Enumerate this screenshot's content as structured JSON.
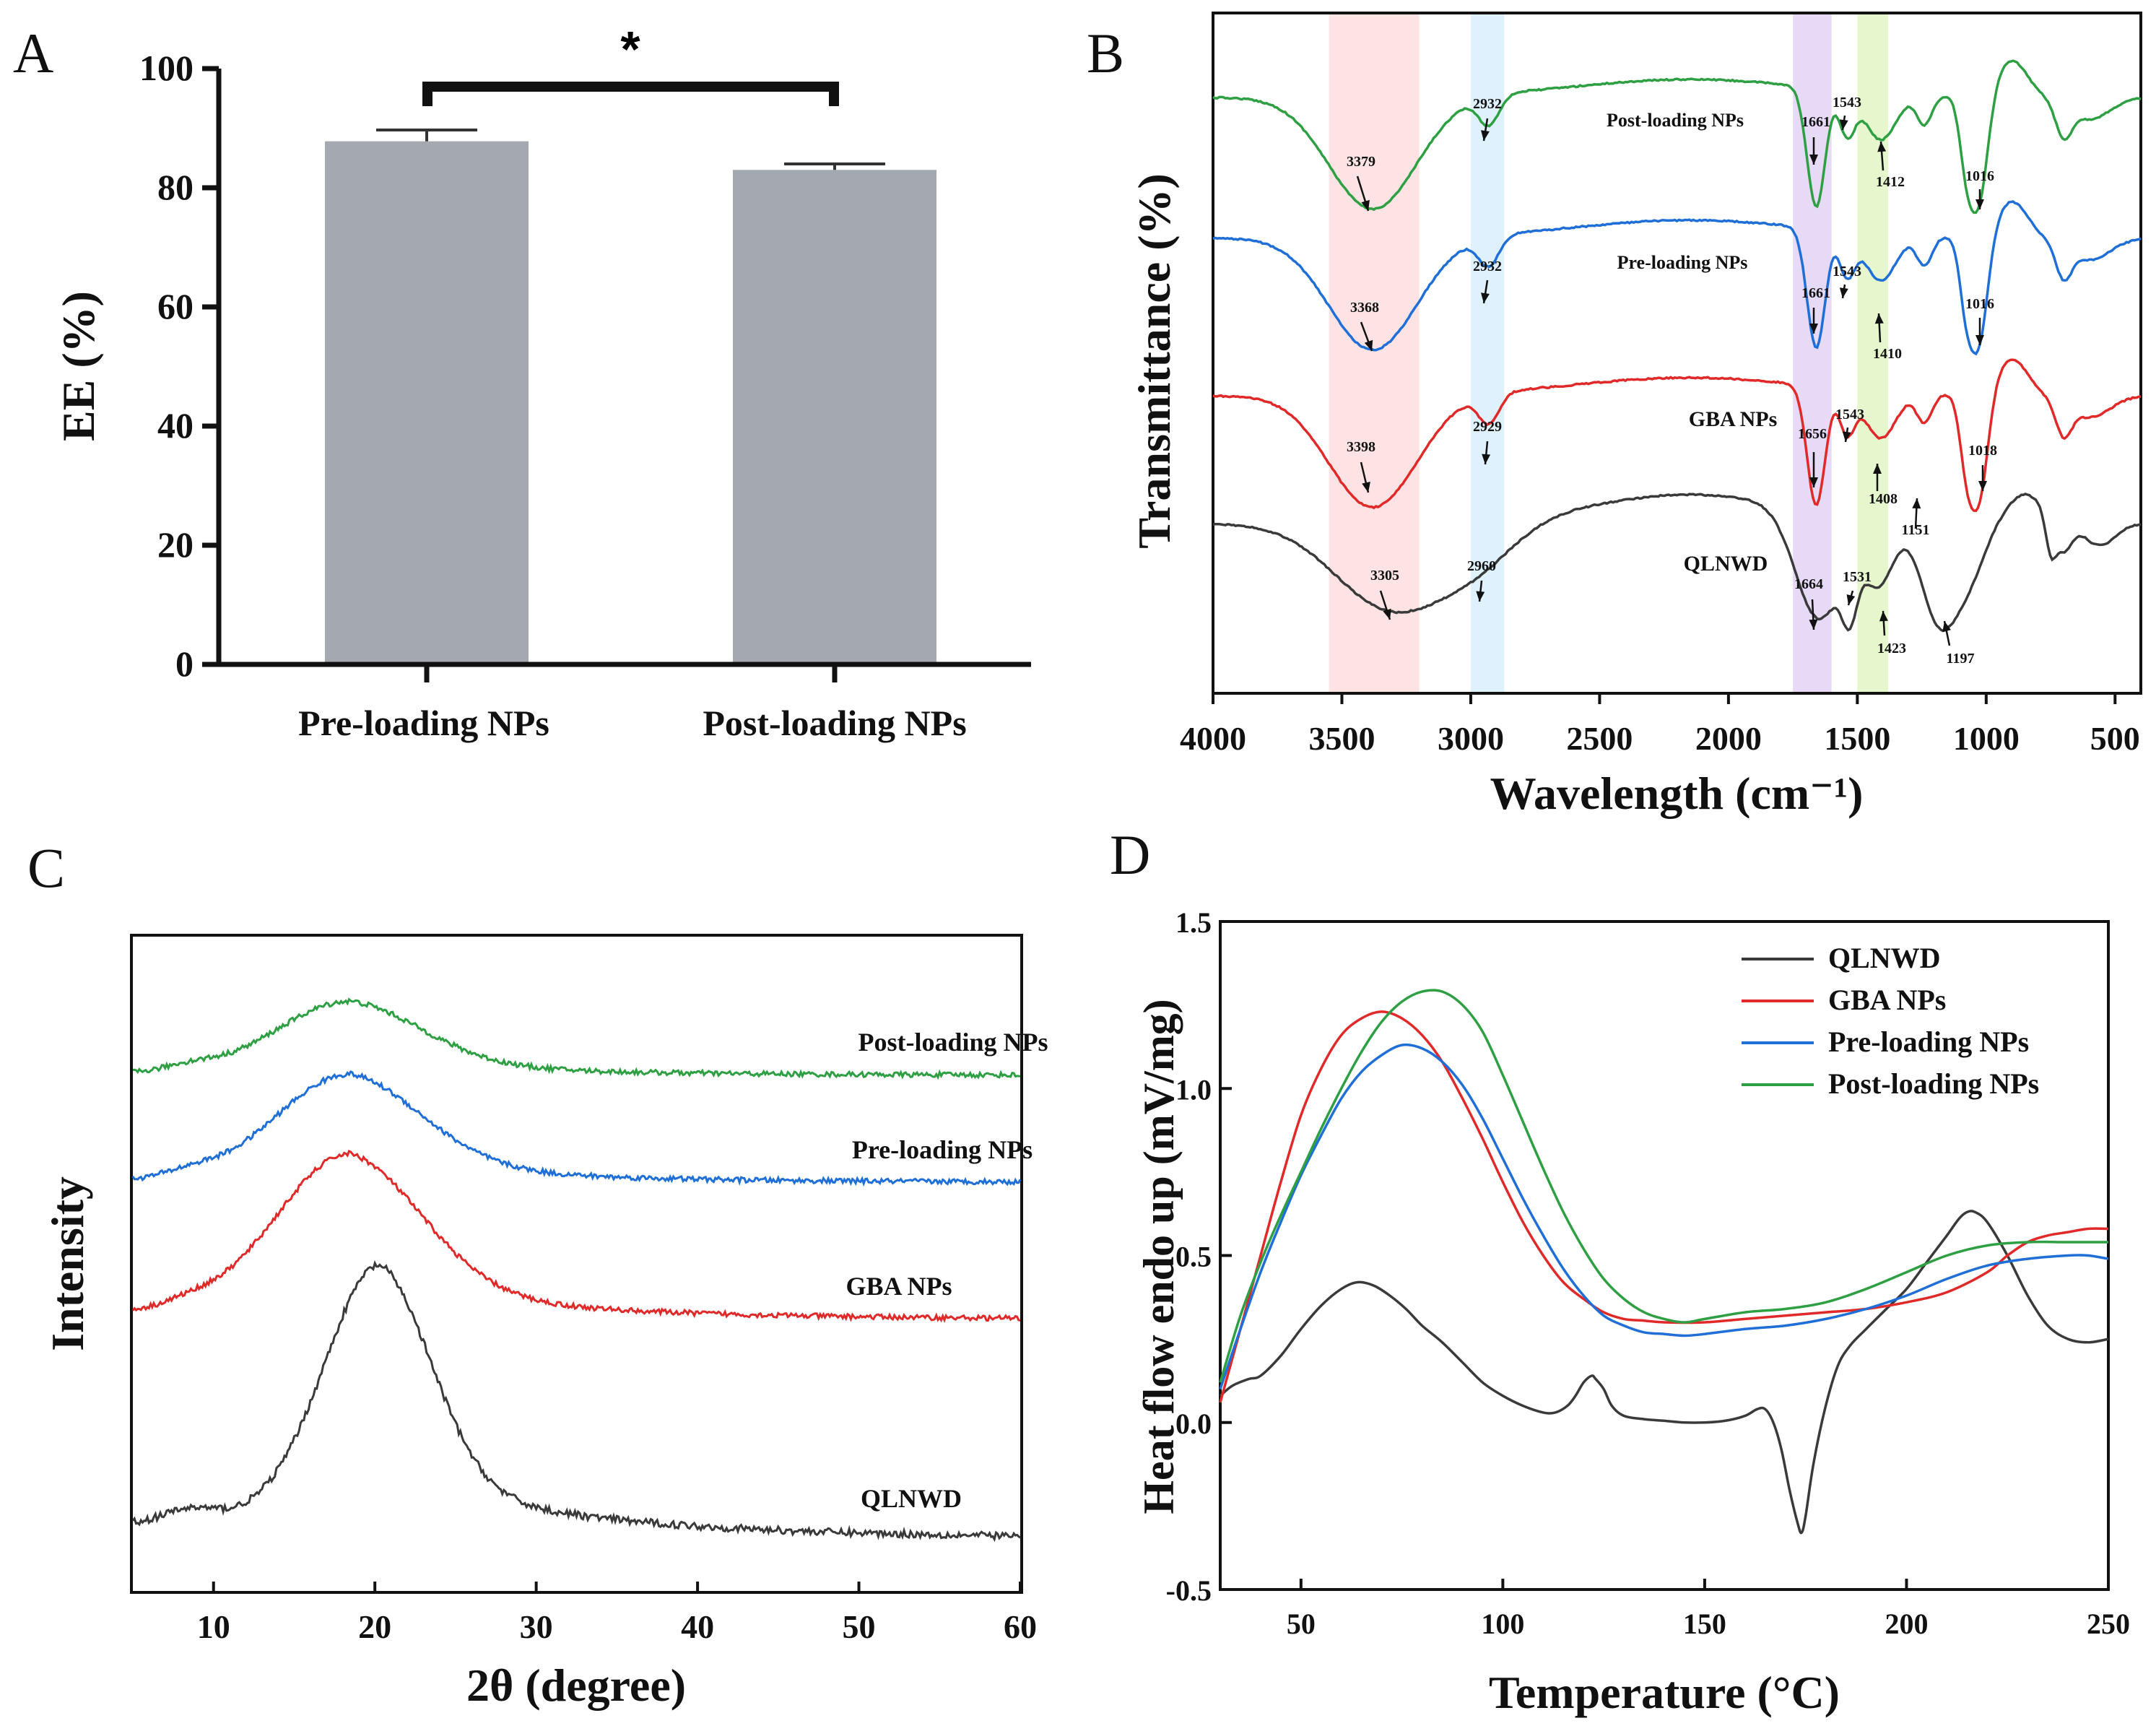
{
  "chart_data": [
    {
      "panel": "A",
      "type": "bar",
      "categories": [
        "Pre-loading NPs",
        "Post-loading NPs"
      ],
      "values": [
        87.8,
        83.0
      ],
      "errors": [
        1.9,
        1.0
      ],
      "ylabel": "EE (%)",
      "ylim": [
        0,
        100
      ],
      "yticks": [
        "0",
        "20",
        "40",
        "60",
        "80",
        "100"
      ],
      "significance": "*",
      "bar_color": "#a4a8af"
    },
    {
      "panel": "B",
      "type": "line",
      "xlabel": "Wavelength (cm⁻¹)",
      "ylabel": "Transmittance (%)",
      "xlim": [
        4000,
        400
      ],
      "xticks": [
        "4000",
        "3500",
        "3000",
        "2500",
        "2000",
        "1500",
        "1000",
        "500"
      ],
      "bands": [
        {
          "from": 3550,
          "to": 3200,
          "color": "#fde0e0"
        },
        {
          "from": 3000,
          "to": 2870,
          "color": "#dbeffd"
        },
        {
          "from": 1750,
          "to": 1600,
          "color": "#e4d6f6"
        },
        {
          "from": 1500,
          "to": 1380,
          "color": "#e3f5c8"
        }
      ],
      "series": [
        {
          "name": "Post-loading NPs",
          "color": "#2ea043",
          "peaks": [
            "3379",
            "2932",
            "1661",
            "1543",
            "1412",
            "1016"
          ]
        },
        {
          "name": "Pre-loading NPs",
          "color": "#1f6fd6",
          "peaks": [
            "3368",
            "2932",
            "1661",
            "1543",
            "1410",
            "1016"
          ]
        },
        {
          "name": "GBA NPs",
          "color": "#e02a2a",
          "peaks": [
            "3398",
            "2929",
            "1656",
            "1543",
            "1408",
            "1151",
            "1018"
          ]
        },
        {
          "name": "QLNWD",
          "color": "#3a3a3a",
          "peaks": [
            "3305",
            "2960",
            "1664",
            "1531",
            "1423",
            "1197"
          ]
        }
      ]
    },
    {
      "panel": "C",
      "type": "line",
      "xlabel": "2θ (degree)",
      "ylabel": "Intensity",
      "xlim": [
        5,
        60
      ],
      "xticks": [
        "10",
        "20",
        "30",
        "40",
        "50",
        "60"
      ],
      "series": [
        {
          "name": "Post-loading NPs",
          "color": "#2ea043",
          "peak_2theta": 18.5
        },
        {
          "name": "Pre-loading NPs",
          "color": "#1f6fd6",
          "peak_2theta": 18.5
        },
        {
          "name": "GBA NPs",
          "color": "#e02a2a",
          "peak_2theta": 18.5
        },
        {
          "name": "QLNWD",
          "color": "#3a3a3a",
          "peak_2theta": 20.3
        }
      ]
    },
    {
      "panel": "D",
      "type": "line",
      "xlabel": "Temperature (°C)",
      "ylabel": "Heat flow endo up (mV/mg)",
      "xlim": [
        30,
        250
      ],
      "ylim": [
        -0.5,
        1.5
      ],
      "xticks": [
        "50",
        "100",
        "150",
        "200",
        "250"
      ],
      "yticks": [
        "-0.5",
        "0.0",
        "0.5",
        "1.0",
        "1.5"
      ],
      "legend": "top-right",
      "series": [
        {
          "name": "QLNWD",
          "color": "#3a3a3a",
          "x": [
            30,
            33,
            37,
            40,
            45,
            50,
            55,
            60,
            64,
            68,
            72,
            76,
            80,
            85,
            90,
            95,
            100,
            105,
            110,
            113,
            116,
            118,
            120,
            122,
            123,
            125,
            127,
            130,
            135,
            140,
            145,
            150,
            155,
            160,
            163,
            165,
            167,
            169,
            171,
            173,
            174,
            175,
            177,
            180,
            183,
            186,
            190,
            195,
            200,
            205,
            210,
            213,
            215,
            217,
            220,
            225,
            230,
            235,
            240,
            245,
            250
          ],
          "y": [
            0.08,
            0.11,
            0.13,
            0.14,
            0.2,
            0.28,
            0.35,
            0.4,
            0.42,
            0.41,
            0.38,
            0.34,
            0.29,
            0.24,
            0.18,
            0.12,
            0.08,
            0.05,
            0.03,
            0.03,
            0.05,
            0.08,
            0.12,
            0.14,
            0.13,
            0.1,
            0.05,
            0.02,
            0.01,
            0.005,
            0.0,
            0.0,
            0.005,
            0.02,
            0.04,
            0.04,
            0.0,
            -0.08,
            -0.2,
            -0.3,
            -0.33,
            -0.28,
            -0.12,
            0.05,
            0.17,
            0.23,
            0.28,
            0.34,
            0.4,
            0.48,
            0.56,
            0.61,
            0.63,
            0.63,
            0.6,
            0.5,
            0.38,
            0.29,
            0.25,
            0.24,
            0.25
          ]
        },
        {
          "name": "GBA NPs",
          "color": "#e02a2a",
          "x": [
            30,
            35,
            40,
            45,
            50,
            55,
            60,
            65,
            70,
            75,
            80,
            85,
            90,
            95,
            100,
            105,
            110,
            115,
            120,
            125,
            130,
            135,
            140,
            150,
            160,
            170,
            180,
            190,
            200,
            210,
            220,
            225,
            230,
            235,
            240,
            245,
            250
          ],
          "y": [
            0.06,
            0.28,
            0.5,
            0.72,
            0.92,
            1.06,
            1.16,
            1.21,
            1.23,
            1.21,
            1.16,
            1.08,
            0.97,
            0.85,
            0.72,
            0.6,
            0.5,
            0.42,
            0.37,
            0.33,
            0.31,
            0.305,
            0.3,
            0.3,
            0.31,
            0.32,
            0.33,
            0.34,
            0.36,
            0.39,
            0.45,
            0.5,
            0.54,
            0.56,
            0.57,
            0.58,
            0.58
          ]
        },
        {
          "name": "Pre-loading NPs",
          "color": "#1f6fd6",
          "x": [
            30,
            35,
            40,
            45,
            50,
            55,
            60,
            65,
            70,
            75,
            80,
            85,
            90,
            95,
            100,
            105,
            110,
            115,
            120,
            125,
            130,
            135,
            140,
            145,
            150,
            160,
            170,
            180,
            190,
            200,
            210,
            220,
            230,
            240,
            245,
            250
          ],
          "y": [
            0.1,
            0.28,
            0.45,
            0.6,
            0.74,
            0.86,
            0.97,
            1.05,
            1.1,
            1.13,
            1.12,
            1.08,
            1.01,
            0.91,
            0.79,
            0.67,
            0.56,
            0.46,
            0.38,
            0.32,
            0.29,
            0.27,
            0.265,
            0.26,
            0.265,
            0.28,
            0.29,
            0.31,
            0.34,
            0.38,
            0.43,
            0.47,
            0.49,
            0.5,
            0.5,
            0.49
          ]
        },
        {
          "name": "Post-loading NPs",
          "color": "#2ea043",
          "x": [
            30,
            35,
            40,
            45,
            50,
            55,
            60,
            65,
            70,
            75,
            80,
            85,
            90,
            95,
            100,
            105,
            110,
            115,
            120,
            125,
            130,
            135,
            140,
            145,
            150,
            160,
            170,
            180,
            190,
            200,
            210,
            220,
            230,
            240,
            250
          ],
          "y": [
            0.12,
            0.32,
            0.48,
            0.62,
            0.75,
            0.88,
            1.0,
            1.11,
            1.2,
            1.26,
            1.29,
            1.29,
            1.25,
            1.17,
            1.04,
            0.9,
            0.76,
            0.63,
            0.52,
            0.43,
            0.37,
            0.33,
            0.31,
            0.3,
            0.31,
            0.33,
            0.34,
            0.36,
            0.4,
            0.45,
            0.5,
            0.53,
            0.54,
            0.54,
            0.54
          ]
        }
      ]
    }
  ]
}
